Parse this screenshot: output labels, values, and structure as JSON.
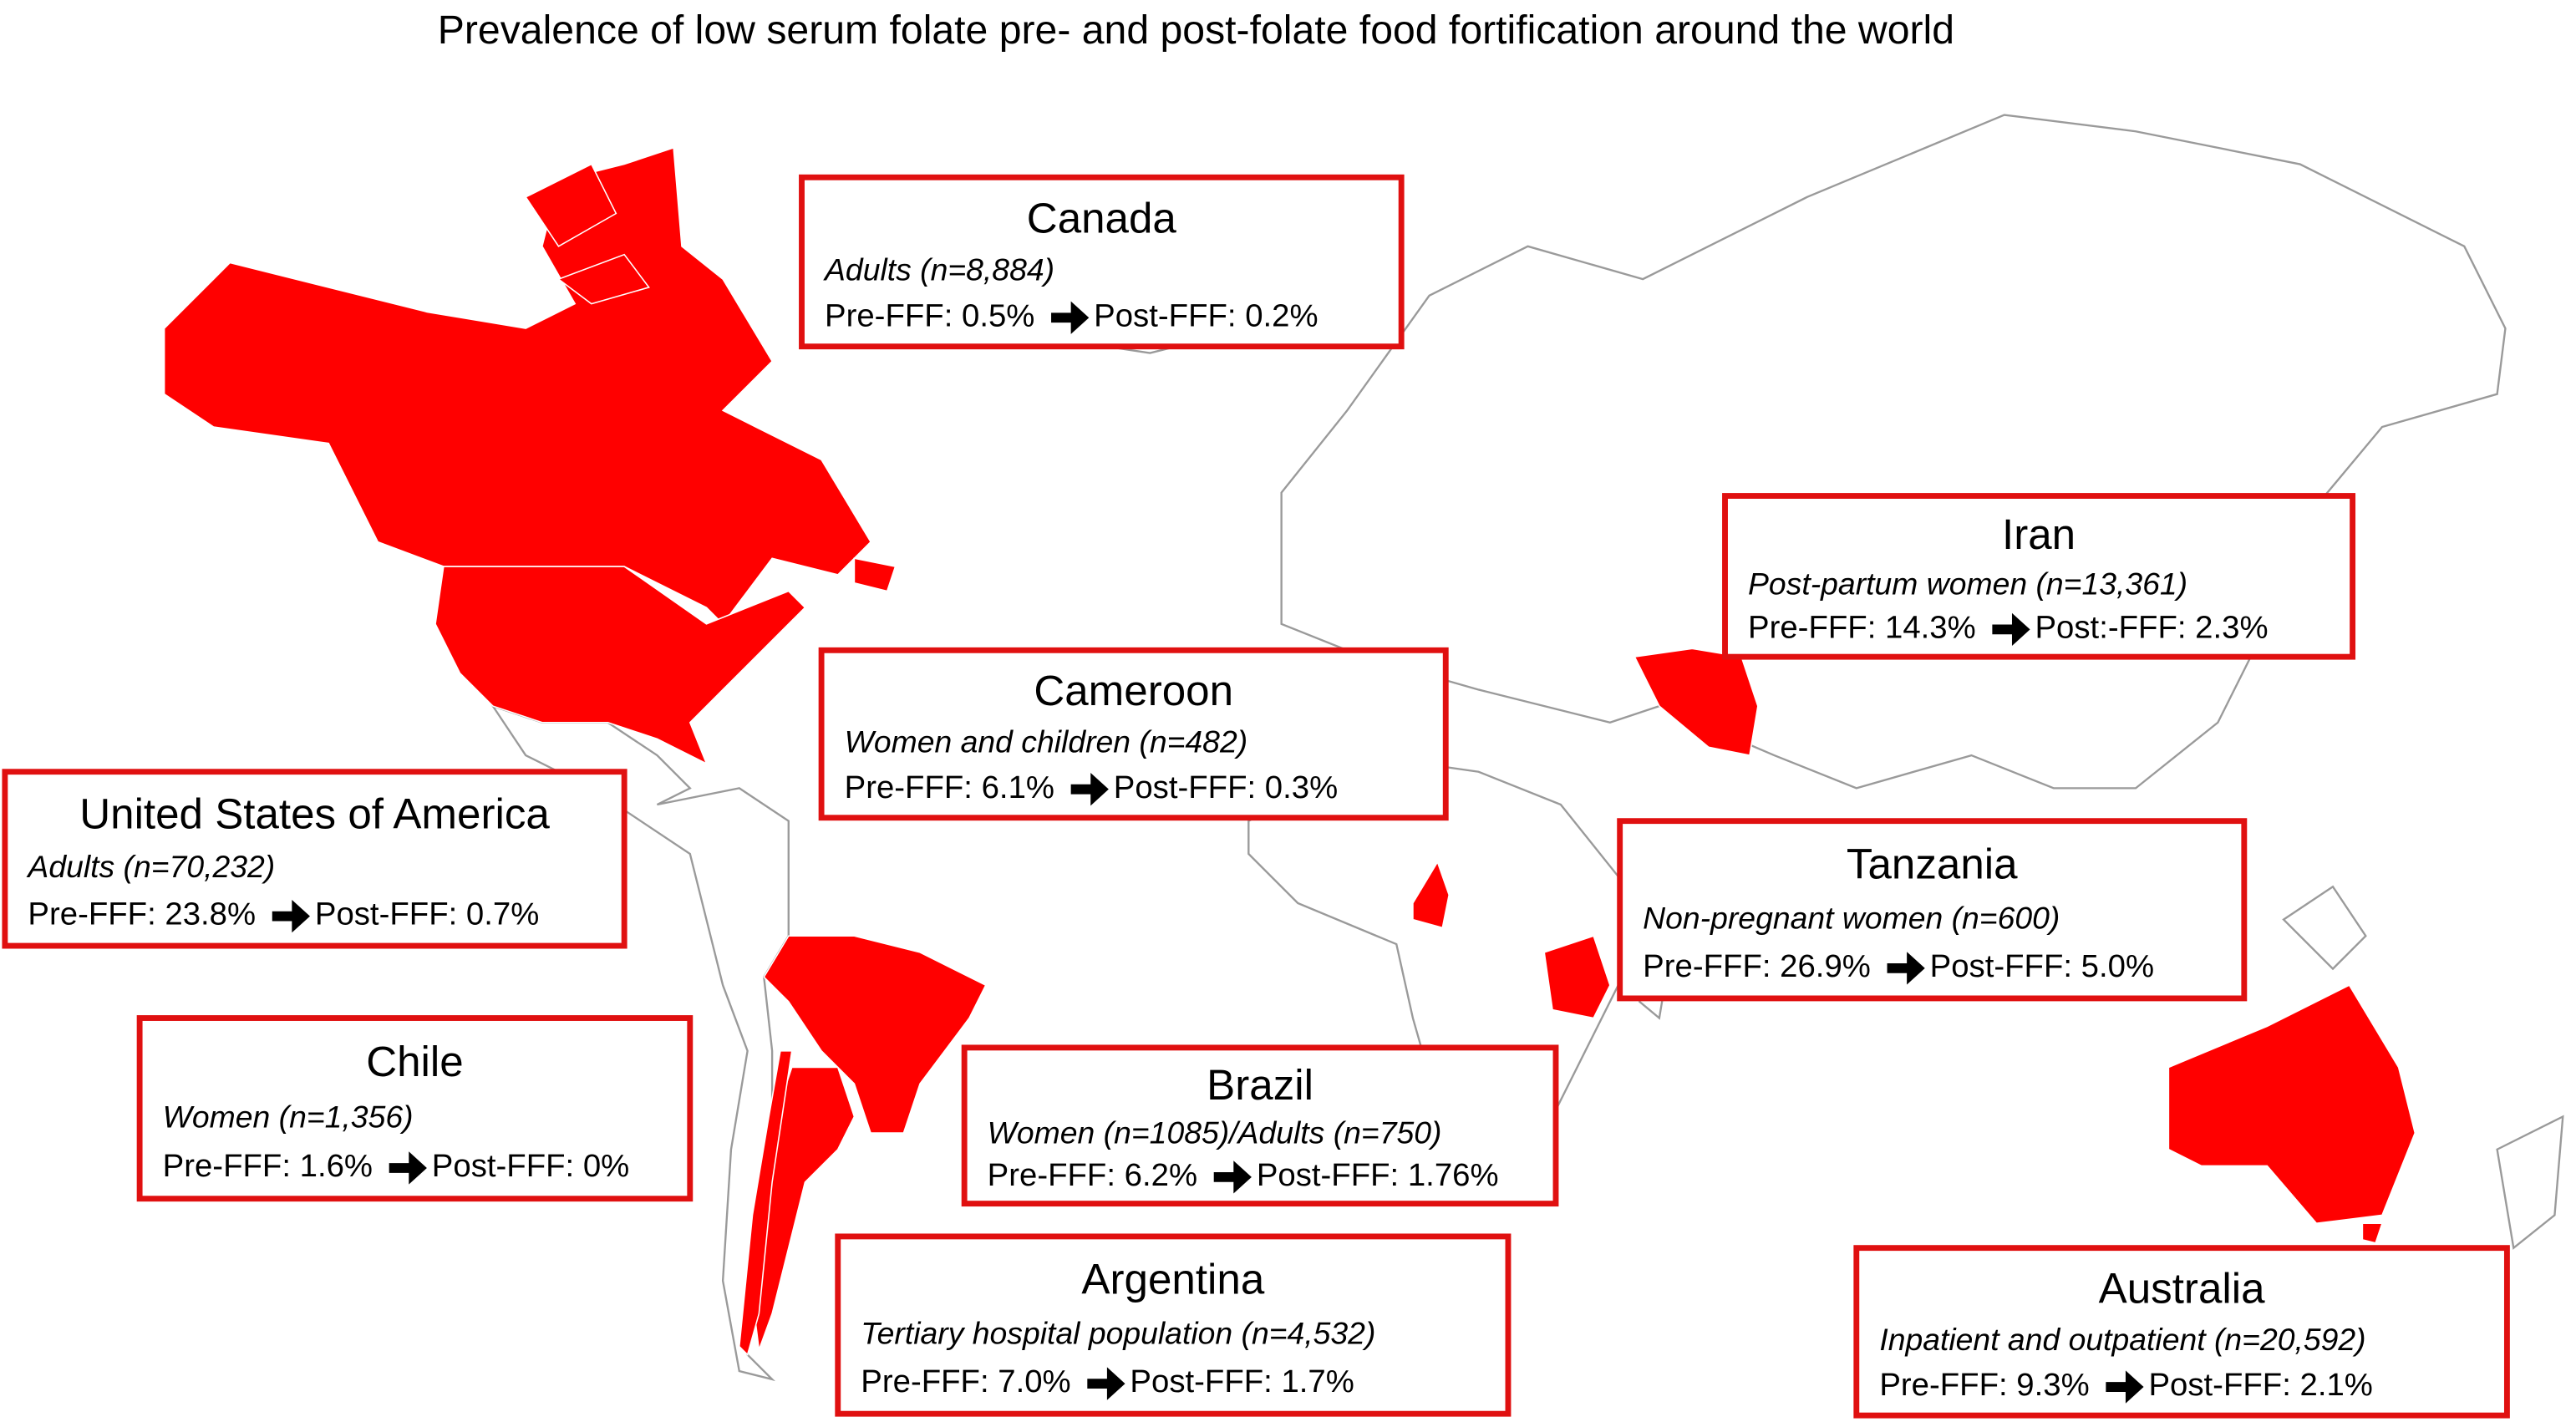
{
  "title": "Prevalence of low serum folate pre- and post-folate food fortification around the world",
  "boxes": [
    {
      "country": "Canada",
      "group": "Adults (n=8,884)",
      "pre": "Pre-FFF: 0.5%",
      "post": "Post-FFF: 0.2%"
    },
    {
      "country": "United States of America",
      "group": "Adults (n=70,232)",
      "pre": "Pre-FFF: 23.8%",
      "post": "Post-FFF: 0.7%"
    },
    {
      "country": "Cameroon",
      "group": "Women and children (n=482)",
      "pre": "Pre-FFF: 6.1%",
      "post": "Post-FFF: 0.3%"
    },
    {
      "country": "Iran",
      "group": "Post-partum women (n=13,361)",
      "pre": "Pre-FFF: 14.3%",
      "post": "Post:-FFF: 2.3%"
    },
    {
      "country": "Tanzania",
      "group": "Non-pregnant women (n=600)",
      "pre": "Pre-FFF: 26.9%",
      "post": "Post-FFF: 5.0%"
    },
    {
      "country": "Chile",
      "group": "Women (n=1,356)",
      "pre": "Pre-FFF: 1.6%",
      "post": "Post-FFF: 0%"
    },
    {
      "country": "Brazil",
      "group": "Women (n=1085)/Adults (n=750)",
      "pre": "Pre-FFF: 6.2%",
      "post": "Post-FFF: 1.76%"
    },
    {
      "country": "Argentina",
      "group": "Tertiary hospital population (n=4,532)",
      "pre": "Pre-FFF: 7.0%",
      "post": "Post-FFF: 1.7%"
    },
    {
      "country": "Australia",
      "group": "Inpatient and outpatient (n=20,592)",
      "pre": "Pre-FFF: 9.3%",
      "post": "Post-FFF: 2.1%"
    }
  ]
}
